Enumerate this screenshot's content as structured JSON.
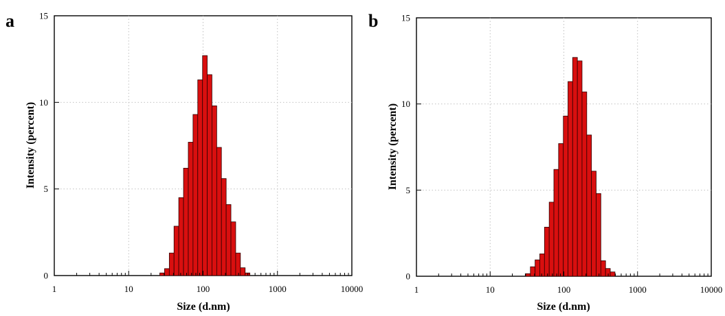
{
  "colors": {
    "bar_fill": "#d90f0f",
    "bar_edge": "#2a0000",
    "grid": "#b8b8b8"
  },
  "chart_data": [
    {
      "panel": "a",
      "type": "bar",
      "xlabel": "Size (d.nm)",
      "ylabel": "Intensity (percent)",
      "x_scale": "log",
      "xlim": [
        1,
        10000
      ],
      "ylim": [
        0,
        15
      ],
      "xticks": [
        "1",
        "10",
        "100",
        "1000",
        "10000"
      ],
      "yticks": [
        "0",
        "5",
        "10",
        "15"
      ],
      "grid": true,
      "x": [
        28.2,
        32.7,
        37.8,
        43.8,
        50.7,
        58.8,
        68.1,
        78.8,
        91.3,
        106,
        122,
        142,
        164,
        190,
        220,
        255,
        295,
        342,
        396
      ],
      "values": [
        0.15,
        0.4,
        1.3,
        2.85,
        4.5,
        6.2,
        7.7,
        9.3,
        11.3,
        12.7,
        11.6,
        9.8,
        7.4,
        5.6,
        4.1,
        3.1,
        1.3,
        0.45,
        0.15
      ]
    },
    {
      "panel": "b",
      "type": "bar",
      "xlabel": "Size (d.nm)",
      "ylabel": "Intensity (percent)",
      "x_scale": "log",
      "xlim": [
        1,
        10000
      ],
      "ylim": [
        0,
        15
      ],
      "xticks": [
        "1",
        "10",
        "100",
        "1000",
        "10000"
      ],
      "yticks": [
        "0",
        "5",
        "10",
        "15"
      ],
      "grid": true,
      "x": [
        32.7,
        37.8,
        43.8,
        50.7,
        58.8,
        68.1,
        78.8,
        91.3,
        106,
        122,
        142,
        164,
        190,
        220,
        255,
        295,
        342,
        396,
        459
      ],
      "values": [
        0.15,
        0.55,
        0.95,
        1.3,
        2.85,
        4.3,
        6.2,
        7.7,
        9.3,
        11.3,
        12.7,
        12.5,
        10.7,
        8.2,
        6.1,
        4.8,
        0.9,
        0.45,
        0.25
      ]
    }
  ]
}
